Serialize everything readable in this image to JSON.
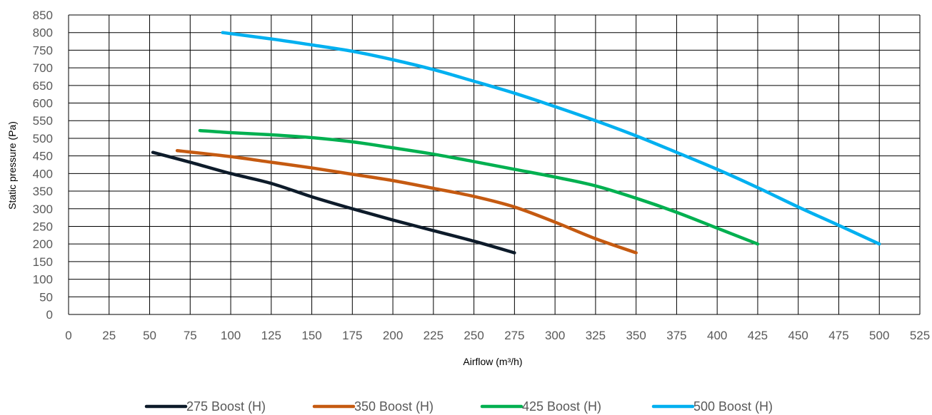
{
  "chart_data": {
    "type": "line",
    "xlabel": "Airflow (m³/h)",
    "ylabel": "Static pressure (Pa)",
    "xlim": [
      0,
      525
    ],
    "ylim": [
      0,
      850
    ],
    "xticks": [
      "0",
      "25",
      "50",
      "75",
      "100",
      "125",
      "150",
      "175",
      "200",
      "225",
      "250",
      "275",
      "300",
      "325",
      "350",
      "375",
      "400",
      "425",
      "450",
      "475",
      "500",
      "525"
    ],
    "yticks": [
      "0",
      "50",
      "100",
      "150",
      "200",
      "250",
      "300",
      "350",
      "400",
      "450",
      "500",
      "550",
      "600",
      "650",
      "700",
      "750",
      "800",
      "850"
    ],
    "grid": true,
    "legend_position": "bottom",
    "series": [
      {
        "name": "275 Boost (H)",
        "color": "#0d1b2a",
        "points": [
          [
            52,
            460
          ],
          [
            75,
            432
          ],
          [
            100,
            400
          ],
          [
            125,
            372
          ],
          [
            150,
            334
          ],
          [
            175,
            300
          ],
          [
            200,
            268
          ],
          [
            225,
            238
          ],
          [
            250,
            208
          ],
          [
            275,
            175
          ]
        ]
      },
      {
        "name": "350 Boost (H)",
        "color": "#c55a11",
        "points": [
          [
            67,
            465
          ],
          [
            100,
            448
          ],
          [
            125,
            432
          ],
          [
            150,
            416
          ],
          [
            175,
            398
          ],
          [
            200,
            380
          ],
          [
            225,
            358
          ],
          [
            250,
            335
          ],
          [
            275,
            305
          ],
          [
            300,
            262
          ],
          [
            325,
            215
          ],
          [
            350,
            175
          ]
        ]
      },
      {
        "name": "425 Boost (H)",
        "color": "#00b050",
        "points": [
          [
            81,
            522
          ],
          [
            100,
            516
          ],
          [
            125,
            510
          ],
          [
            150,
            502
          ],
          [
            175,
            490
          ],
          [
            200,
            473
          ],
          [
            225,
            455
          ],
          [
            250,
            434
          ],
          [
            275,
            412
          ],
          [
            300,
            390
          ],
          [
            325,
            365
          ],
          [
            350,
            330
          ],
          [
            375,
            290
          ],
          [
            400,
            245
          ],
          [
            425,
            200
          ]
        ]
      },
      {
        "name": "500 Boost (H)",
        "color": "#00b0f0",
        "points": [
          [
            95,
            800
          ],
          [
            125,
            782
          ],
          [
            150,
            765
          ],
          [
            175,
            747
          ],
          [
            200,
            723
          ],
          [
            225,
            695
          ],
          [
            250,
            662
          ],
          [
            275,
            628
          ],
          [
            300,
            590
          ],
          [
            325,
            550
          ],
          [
            350,
            507
          ],
          [
            375,
            460
          ],
          [
            400,
            412
          ],
          [
            425,
            360
          ],
          [
            450,
            305
          ],
          [
            475,
            253
          ],
          [
            500,
            200
          ]
        ]
      }
    ]
  }
}
